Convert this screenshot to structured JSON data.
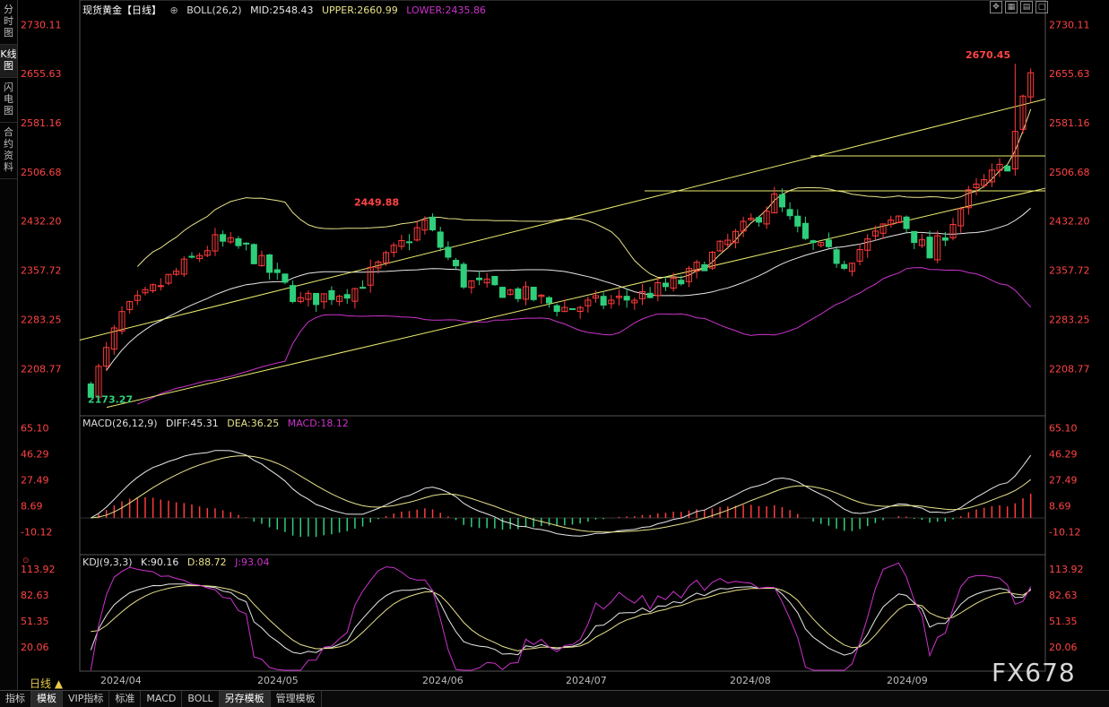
{
  "sidebar": {
    "tabs": [
      {
        "label": "分时图",
        "active": false
      },
      {
        "label": "K线图",
        "active": true
      },
      {
        "label": "闪电图",
        "active": false
      },
      {
        "label": "合约资料",
        "active": false
      }
    ]
  },
  "header": {
    "title": "现货黄金【日线】",
    "boll": "BOLL(26,2)",
    "mid": "MID:2548.43",
    "upper": "UPPER:2660.99",
    "lower": "LOWER:2435.86"
  },
  "macd_header": {
    "name": "MACD(26,12,9)",
    "diff": "DIFF:45.31",
    "dea": "DEA:36.25",
    "macd": "MACD:18.12"
  },
  "kdj_header": {
    "name": "KDJ(9,3,3)",
    "k": "K:90.16",
    "d": "D:88.72",
    "j": "J:93.04"
  },
  "colors": {
    "up": "#ff3b3b",
    "down": "#2ecf7a",
    "mid": "#e8e8e8",
    "upper": "#e8e28a",
    "lower": "#cc33cc",
    "trend": "#ecec70",
    "axis": "#ff4444"
  },
  "annotations": {
    "high_label": "2670.45",
    "mid_label": "2449.88",
    "low_label": "2173.27"
  },
  "bottom_tabs": [
    {
      "label": "指标",
      "active": false
    },
    {
      "label": "模板",
      "active": true
    },
    {
      "label": "VIP指标",
      "active": false
    },
    {
      "label": "标准",
      "active": false
    },
    {
      "label": "MACD",
      "active": false
    },
    {
      "label": "BOLL",
      "active": false
    },
    {
      "label": "另存模板",
      "active": true
    },
    {
      "label": "管理模板",
      "active": false
    }
  ],
  "daily_label": "日线 ▲",
  "watermark": "FX678",
  "chart_data": [
    {
      "type": "candlestick",
      "title": "现货黄金【日线】",
      "y_ticks": [
        "2730.11",
        "2655.63",
        "2581.16",
        "2506.68",
        "2432.20",
        "2357.72",
        "2283.25",
        "2208.77"
      ],
      "ylim": [
        2140,
        2740
      ],
      "x_ticks": [
        "2024/04",
        "2024/05",
        "2024/06",
        "2024/07",
        "2024/08",
        "2024/09"
      ],
      "grid": false,
      "anchors": {
        "start_low": 2173.27,
        "april_high": 2431,
        "may_high": 2449.88,
        "june_low": 2286,
        "july_high": 2483,
        "aug_low": 2364,
        "aug_high": 2531,
        "sep_end": 2658,
        "peak": 2670.45
      },
      "bollinger": {
        "mid": 2548.43,
        "upper": 2660.99,
        "lower": 2435.86
      },
      "horizontal_levels": [
        2531,
        2478
      ]
    },
    {
      "type": "macd",
      "y_ticks": [
        "65.10",
        "46.29",
        "27.49",
        "8.69",
        "-10.12"
      ],
      "ylim": [
        -24,
        70
      ],
      "diff": 45.31,
      "dea": 36.25,
      "macd": 18.12
    },
    {
      "type": "kdj",
      "y_ticks": [
        "113.92",
        "82.63",
        "51.35",
        "20.06"
      ],
      "ylim": [
        -8,
        125
      ],
      "k": 90.16,
      "d": 88.72,
      "j": 93.04
    }
  ]
}
